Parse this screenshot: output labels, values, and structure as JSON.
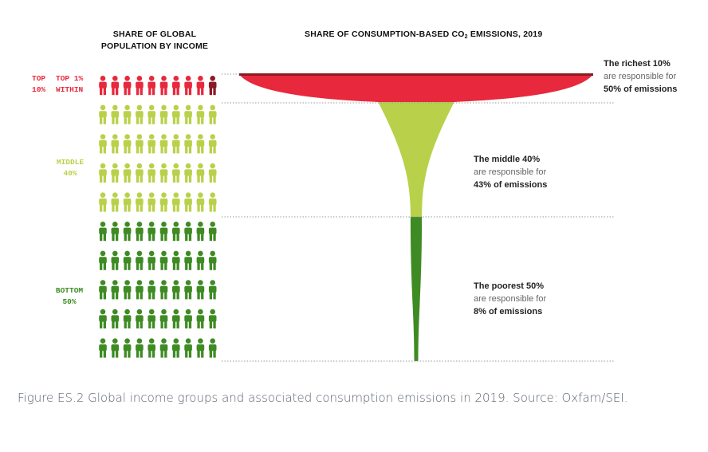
{
  "header_left": [
    "SHARE OF GLOBAL",
    "POPULATION BY INCOME"
  ],
  "header_right": {
    "prefix": "SHARE OF CONSUMPTION-BASED CO",
    "sub": "2",
    "suffix": " EMISSIONS, 2019"
  },
  "groups": {
    "top": [
      "TOP",
      "10%"
    ],
    "top1": [
      "TOP 1%",
      "WITHIN"
    ],
    "middle": [
      "MIDDLE",
      "40%"
    ],
    "bottom": [
      "BOTTOM",
      "50%"
    ]
  },
  "annotations": {
    "richest": [
      "The richest 10%",
      "are responsible for",
      "50% of emissions"
    ],
    "middle": [
      "The middle 40%",
      "are responsible for",
      "43% of emissions"
    ],
    "poorest": [
      "The poorest 50%",
      "are responsible for",
      "8% of emissions"
    ]
  },
  "caption": "Figure ES.2 Global income groups and associated consumption emissions in 2019. Source: Oxfam/SEI.",
  "colors": {
    "top": "#e8283c",
    "top1": "#8c1a24",
    "middle": "#b9d14a",
    "bottom": "#3e8b23",
    "top_label": "#e8283c",
    "middle_label": "#b9d14a",
    "bottom_label": "#3e8b23"
  },
  "chart_data": {
    "type": "pictogram-funnel",
    "title": "SHARE OF CONSUMPTION-BASED CO2 EMISSIONS, 2019",
    "population_icons_per_row": 10,
    "population_rows": {
      "top": 1,
      "middle": 4,
      "bottom": 5
    },
    "categories": [
      "Top 10%",
      "Middle 40%",
      "Bottom 50%"
    ],
    "population_share": [
      10,
      40,
      50
    ],
    "emissions_share": [
      50,
      43,
      8
    ],
    "top1_within_top10": 1
  }
}
